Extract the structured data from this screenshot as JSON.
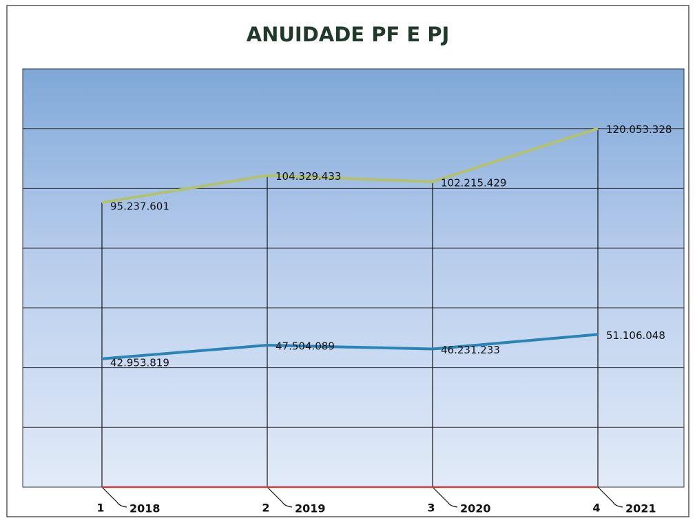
{
  "chart_data": {
    "type": "line",
    "title": "ANUIDADE PF E PJ",
    "categories": [
      "2018",
      "2019",
      "2020",
      "2021"
    ],
    "category_numbers": [
      1,
      2,
      3,
      4
    ],
    "series": [
      {
        "color": "#b3c26c",
        "values": [
          95237601,
          104329433,
          102215429,
          120053328
        ],
        "value_labels": [
          "95.237.601",
          "104.329.433",
          "102.215.429",
          "120.053.328"
        ]
      },
      {
        "color": "#2a84b6",
        "values": [
          42953819,
          47504089,
          46231233,
          51106048
        ],
        "value_labels": [
          "42.953.819",
          "47.504.089",
          "46.231.233",
          "51.106.048"
        ]
      },
      {
        "color": "#c0404a",
        "values": [
          0,
          0,
          0,
          0
        ]
      }
    ],
    "ylim": [
      0,
      140000000
    ],
    "yticks": [
      0,
      20000000,
      40000000,
      60000000,
      80000000,
      100000000,
      120000000,
      140000000
    ],
    "grid": true
  }
}
